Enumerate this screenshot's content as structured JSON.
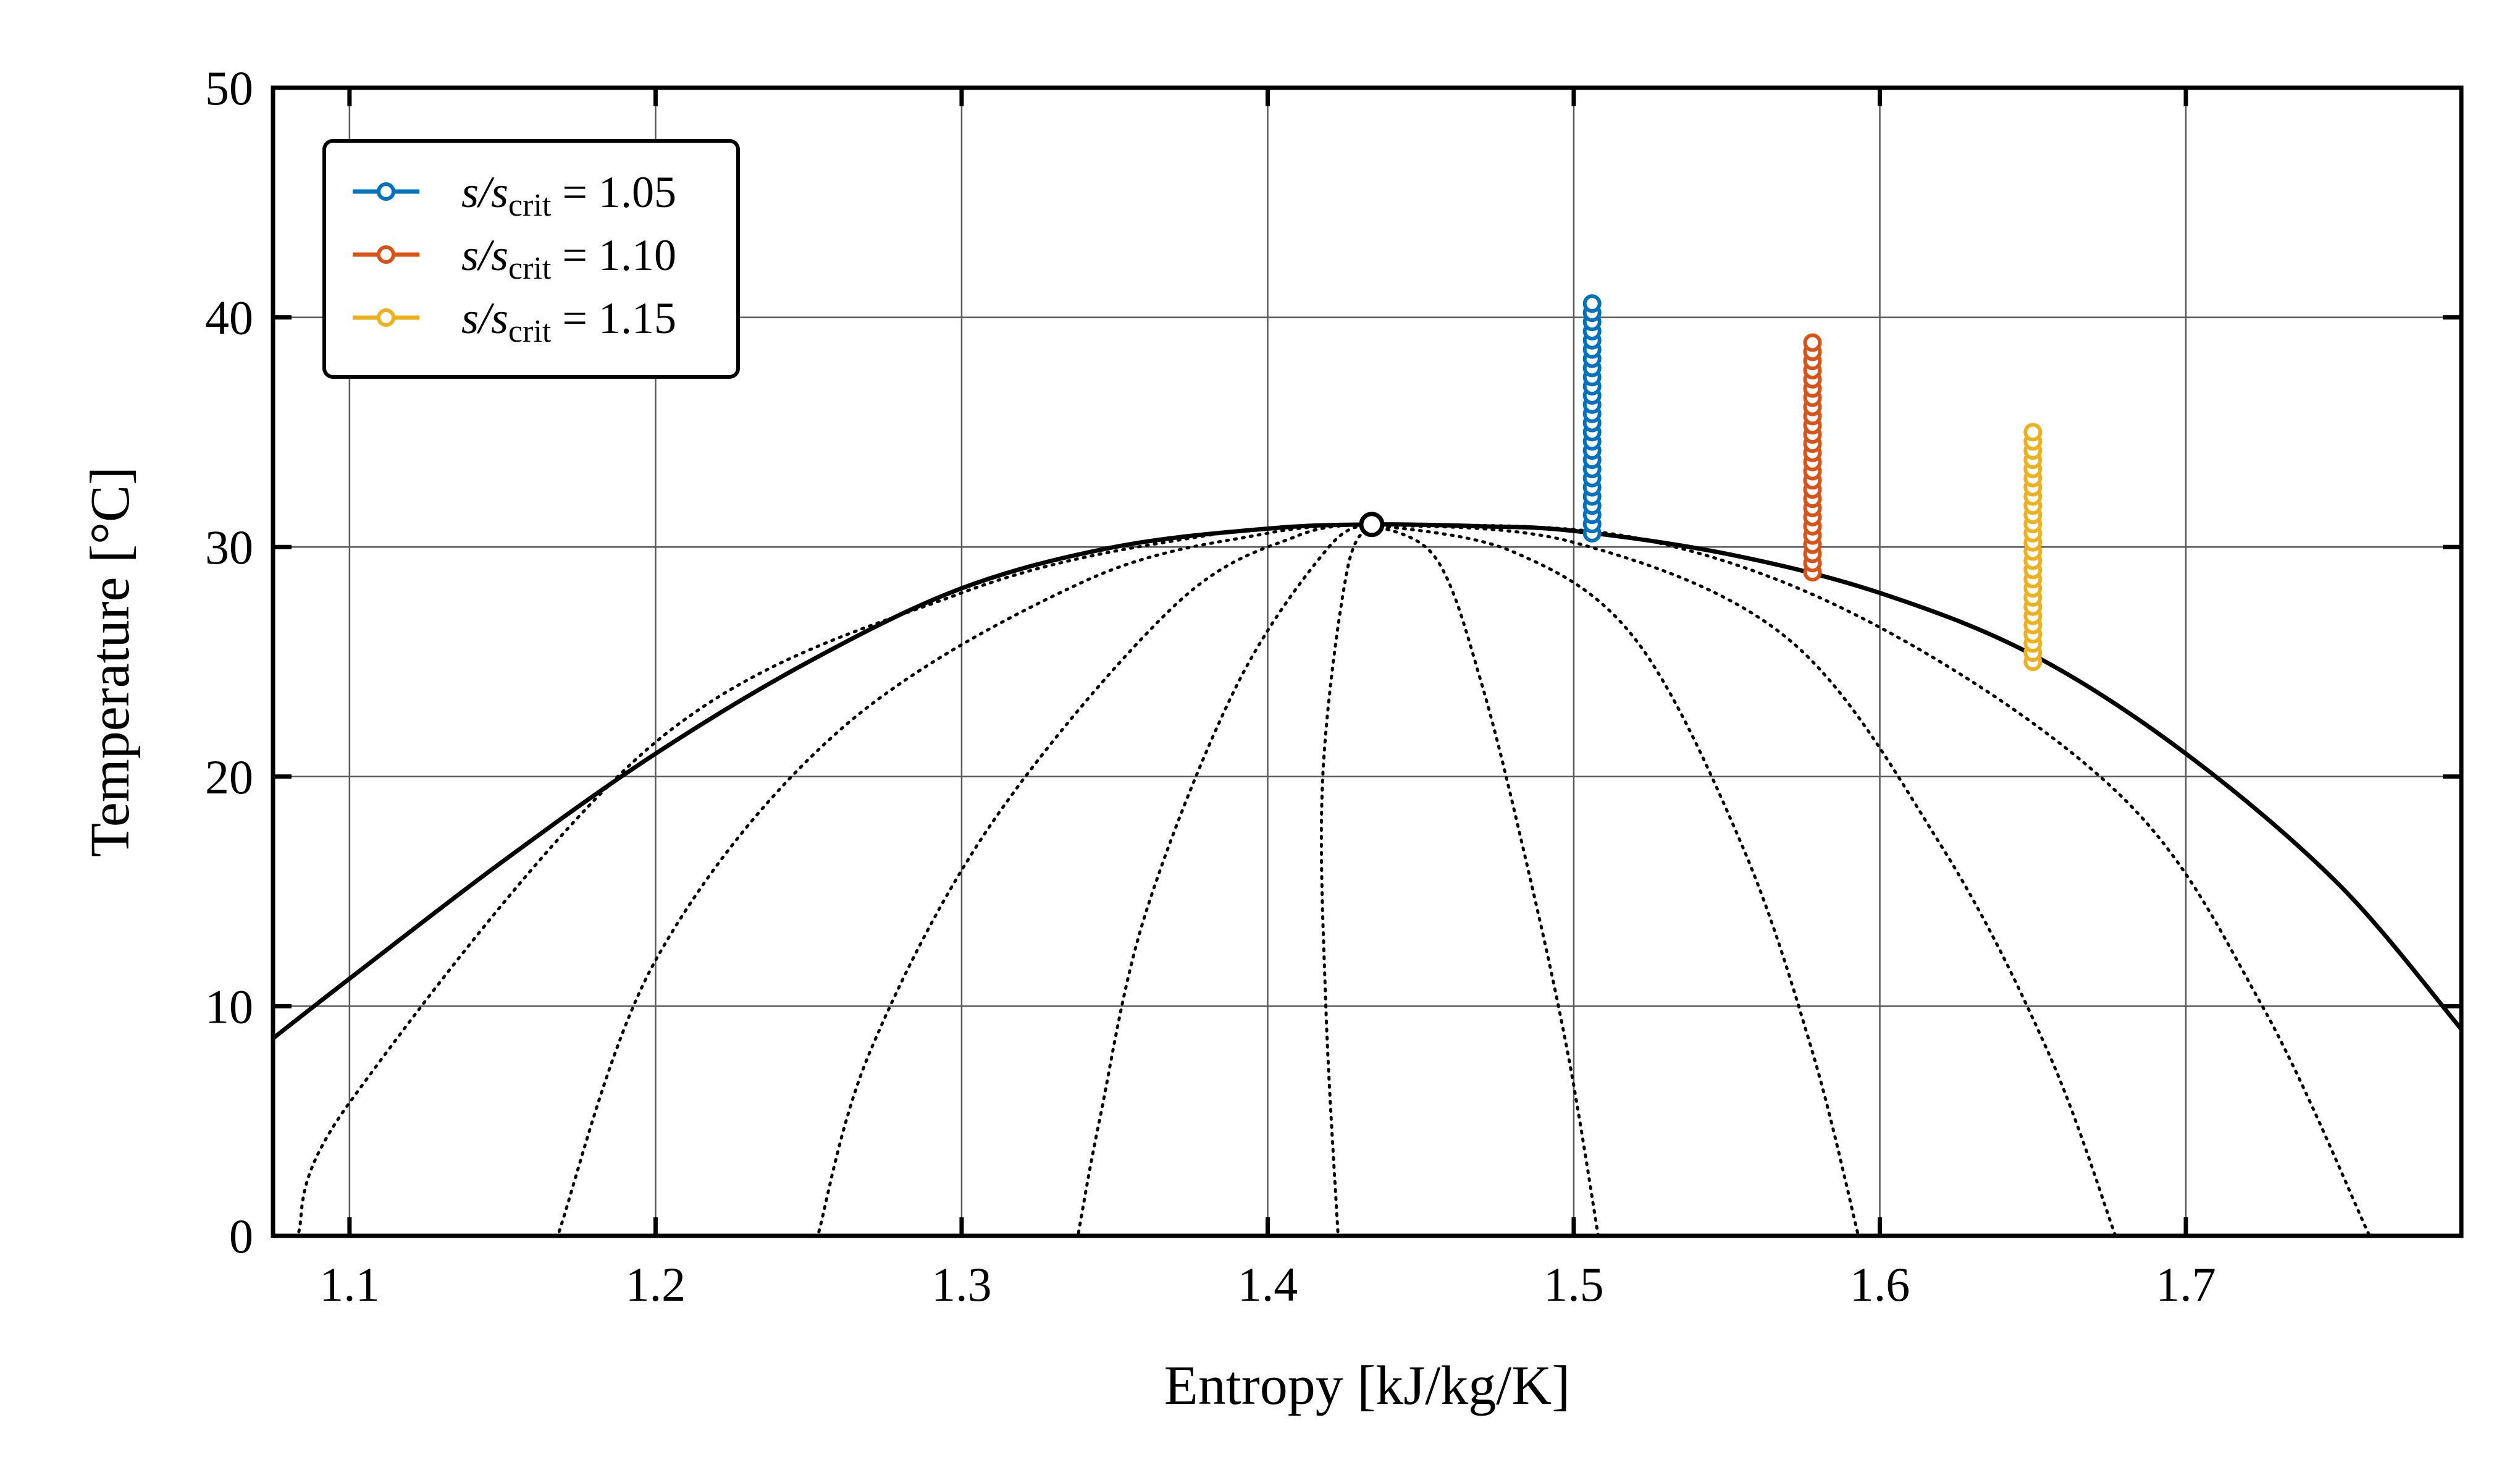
{
  "chart_data": {
    "type": "line",
    "xlabel": "Entropy [kJ/kg/K]",
    "ylabel": "Temperature [°C]",
    "xlim": [
      1.075,
      1.79
    ],
    "ylim": [
      0,
      50
    ],
    "xticks": [
      1.1,
      1.2,
      1.3,
      1.4,
      1.5,
      1.6,
      1.7
    ],
    "xtick_labels": [
      "1.1",
      "1.2",
      "1.3",
      "1.4",
      "1.5",
      "1.6",
      "1.7"
    ],
    "yticks": [
      0,
      10,
      20,
      30,
      40,
      50
    ],
    "ytick_labels": [
      "0",
      "10",
      "20",
      "30",
      "40",
      "50"
    ],
    "grid": true,
    "legend_position": "top-left",
    "critical_point": {
      "s": 1.434,
      "T": 30.98
    },
    "saturation_dome": {
      "s": [
        1.075,
        1.1,
        1.15,
        1.2,
        1.25,
        1.3,
        1.35,
        1.4,
        1.434,
        1.47,
        1.5,
        1.55,
        1.6,
        1.65,
        1.7,
        1.75,
        1.79
      ],
      "T": [
        8.6,
        11.2,
        16.3,
        21.0,
        25.0,
        28.2,
        30.0,
        30.8,
        30.98,
        30.9,
        30.7,
        29.7,
        28.0,
        25.3,
        21.0,
        15.3,
        9.0
      ]
    },
    "quality_lines": [
      {
        "s": [
          1.434,
          1.38,
          1.3,
          1.2,
          1.1,
          1.083
        ],
        "T": [
          30.98,
          30.5,
          28.0,
          21.5,
          5.8,
          0
        ]
      },
      {
        "s": [
          1.434,
          1.4,
          1.34,
          1.26,
          1.2,
          1.168
        ],
        "T": [
          30.98,
          30.6,
          28.5,
          22.0,
          12.0,
          0
        ]
      },
      {
        "s": [
          1.434,
          1.41,
          1.37,
          1.31,
          1.27,
          1.253
        ],
        "T": [
          30.98,
          30.5,
          27.5,
          18.0,
          8.0,
          0
        ]
      },
      {
        "s": [
          1.434,
          1.42,
          1.39,
          1.36,
          1.345,
          1.338
        ],
        "T": [
          30.98,
          30.0,
          24.0,
          14.0,
          5.0,
          0
        ]
      },
      {
        "s": [
          1.434,
          1.426,
          1.418,
          1.419,
          1.423
        ],
        "T": [
          30.98,
          29.0,
          20.0,
          10.0,
          0
        ]
      },
      {
        "s": [
          1.434,
          1.455,
          1.47,
          1.485,
          1.498,
          1.508
        ],
        "T": [
          30.98,
          29.5,
          24.0,
          16.0,
          8.0,
          0
        ]
      },
      {
        "s": [
          1.434,
          1.48,
          1.52,
          1.555,
          1.578,
          1.593
        ],
        "T": [
          30.98,
          29.8,
          26.0,
          17.0,
          8.0,
          0
        ]
      },
      {
        "s": [
          1.434,
          1.5,
          1.57,
          1.62,
          1.655,
          1.677
        ],
        "T": [
          30.98,
          30.2,
          26.0,
          17.0,
          8.0,
          0
        ]
      },
      {
        "s": [
          1.434,
          1.52,
          1.6,
          1.68,
          1.725,
          1.76
        ],
        "T": [
          30.98,
          30.4,
          26.5,
          19.0,
          10.0,
          0
        ]
      }
    ],
    "series": [
      {
        "name": "s/s_crit = 1.05",
        "color": "#0072BD",
        "s": 1.506,
        "T_start": 30.6,
        "T_end": 40.6,
        "count": 26
      },
      {
        "name": "s/s_crit = 1.10",
        "color": "#D95319",
        "s": 1.578,
        "T_start": 28.9,
        "T_end": 38.9,
        "count": 26
      },
      {
        "name": "s/s_crit = 1.15",
        "color": "#EDB120",
        "s": 1.65,
        "T_start": 25.0,
        "T_end": 35.0,
        "count": 26
      }
    ]
  },
  "legend": {
    "entries": [
      {
        "prefix": "s/s",
        "sub": "crit",
        "suffix": " = 1.05",
        "color": "#0072BD"
      },
      {
        "prefix": "s/s",
        "sub": "crit",
        "suffix": " = 1.10",
        "color": "#D95319"
      },
      {
        "prefix": "s/s",
        "sub": "crit",
        "suffix": " = 1.15",
        "color": "#EDB120"
      }
    ]
  }
}
